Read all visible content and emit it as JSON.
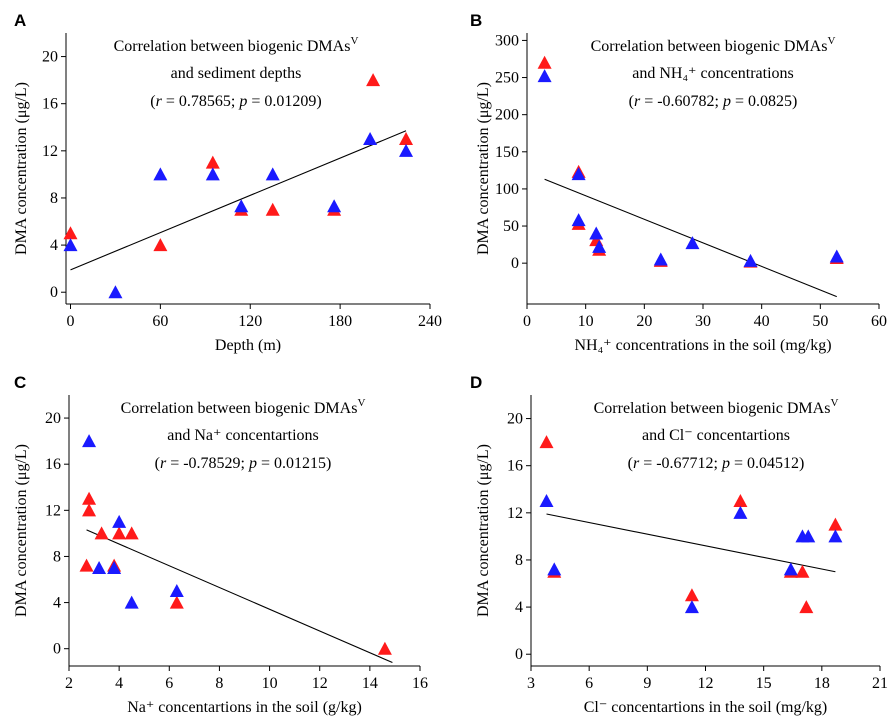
{
  "figure": {
    "panels": [
      "A",
      "B",
      "C",
      "D"
    ]
  },
  "chart_data": [
    {
      "panel": "A",
      "type": "scatter",
      "title_line1": "Correlation between biogenic DMAs",
      "title_sup": "V",
      "title_line2": "and sediment depths",
      "stat_r": "0.78565",
      "stat_p": "0.01209",
      "xlabel": "Depth (m)",
      "ylabel": "DMA concentration (μg/L)",
      "xlim": [
        -3,
        240
      ],
      "ylim": [
        -1,
        22
      ],
      "xticks": [
        0,
        60,
        120,
        180,
        240
      ],
      "yticks": [
        0,
        4,
        8,
        12,
        16,
        20
      ],
      "series": [
        {
          "color": "#ff1a1a",
          "x": [
            0,
            60,
            95,
            114,
            135,
            176,
            202,
            224
          ],
          "y": [
            5,
            4,
            11,
            7,
            7,
            7,
            18,
            13
          ]
        },
        {
          "color": "#1a1aff",
          "x": [
            0,
            30,
            60,
            95,
            114,
            135,
            176,
            200,
            224
          ],
          "y": [
            4,
            0,
            10,
            10,
            7.3,
            10,
            7.3,
            13,
            12
          ]
        }
      ],
      "fit": {
        "x": [
          0,
          224
        ],
        "y": [
          1.9,
          13.7
        ]
      }
    },
    {
      "panel": "B",
      "type": "scatter",
      "title_line1": "Correlation between biogenic DMAs",
      "title_sup": "V",
      "title_line2": "and NH₄⁺ concentrations",
      "stat_r": "-0.60782",
      "stat_p": "0.0825",
      "xlabel": "NH₄⁺ concentrations in the soil (mg/kg)",
      "ylabel": "DMA concentration (μg/L)",
      "xlim": [
        0,
        60
      ],
      "ylim": [
        -55,
        310
      ],
      "xticks": [
        0,
        10,
        20,
        30,
        40,
        50,
        60
      ],
      "yticks": [
        0,
        50,
        100,
        150,
        200,
        250,
        300
      ],
      "series": [
        {
          "color": "#ff1a1a",
          "x": [
            3,
            8.8,
            8.8,
            11.8,
            12.3,
            22.8,
            38.1,
            52.8
          ],
          "y": [
            270,
            123,
            53,
            31,
            18,
            3,
            2,
            7
          ]
        },
        {
          "color": "#1a1aff",
          "x": [
            3,
            8.8,
            8.8,
            11.8,
            12.3,
            22.8,
            28.2,
            38.1,
            52.8
          ],
          "y": [
            252,
            120,
            58,
            40,
            22,
            5,
            27,
            3,
            9
          ]
        }
      ],
      "fit": {
        "x": [
          3,
          52.8
        ],
        "y": [
          113,
          -45
        ]
      }
    },
    {
      "panel": "C",
      "type": "scatter",
      "title_line1": "Correlation between biogenic DMAs",
      "title_sup": "V",
      "title_line2": "and Na⁺ concentartions",
      "stat_r": "-0.78529",
      "stat_p": "0.01215",
      "xlabel": "Na⁺ concentartions in the soil (g/kg)",
      "ylabel": "DMA concentration (μg/L)",
      "xlim": [
        2,
        16
      ],
      "ylim": [
        -1.5,
        22
      ],
      "xticks": [
        2,
        4,
        6,
        8,
        10,
        12,
        14,
        16
      ],
      "yticks": [
        0,
        4,
        8,
        12,
        16,
        20
      ],
      "series": [
        {
          "color": "#ff1a1a",
          "x": [
            2.7,
            2.8,
            2.8,
            3.3,
            3.8,
            4.0,
            4.5,
            6.3,
            14.6
          ],
          "y": [
            7.2,
            13,
            12,
            10,
            7.2,
            10,
            10,
            4,
            0
          ]
        },
        {
          "color": "#1a1aff",
          "x": [
            2.8,
            3.2,
            3.8,
            4.0,
            4.5,
            6.3
          ],
          "y": [
            18,
            7,
            7,
            11,
            4,
            5
          ]
        }
      ],
      "fit": {
        "x": [
          2.7,
          14.9
        ],
        "y": [
          10.3,
          -1.2
        ]
      }
    },
    {
      "panel": "D",
      "type": "scatter",
      "title_line1": "Correlation between biogenic DMAs",
      "title_sup": "V",
      "title_line2": "and Cl⁻ concentartions",
      "stat_r": "-0.67712",
      "stat_p": "0.04512",
      "xlabel": "Cl⁻ concentartions in the soil (mg/kg)",
      "ylabel": "DMA concentration (μg/L)",
      "xlim": [
        3,
        21
      ],
      "ylim": [
        -1,
        22
      ],
      "xticks": [
        3,
        6,
        9,
        12,
        15,
        18,
        21
      ],
      "yticks": [
        0,
        4,
        8,
        12,
        16,
        20
      ],
      "series": [
        {
          "color": "#ff1a1a",
          "x": [
            3.8,
            4.2,
            11.3,
            13.8,
            16.4,
            17.0,
            17.2,
            18.7
          ],
          "y": [
            18,
            7,
            5,
            13,
            7,
            7,
            4,
            11
          ]
        },
        {
          "color": "#1a1aff",
          "x": [
            3.8,
            4.2,
            11.3,
            13.8,
            16.4,
            17.0,
            17.3,
            18.7
          ],
          "y": [
            13,
            7.2,
            4,
            12,
            7.2,
            10,
            10,
            10
          ]
        }
      ],
      "fit": {
        "x": [
          3.8,
          18.7
        ],
        "y": [
          11.9,
          7.0
        ]
      }
    }
  ]
}
